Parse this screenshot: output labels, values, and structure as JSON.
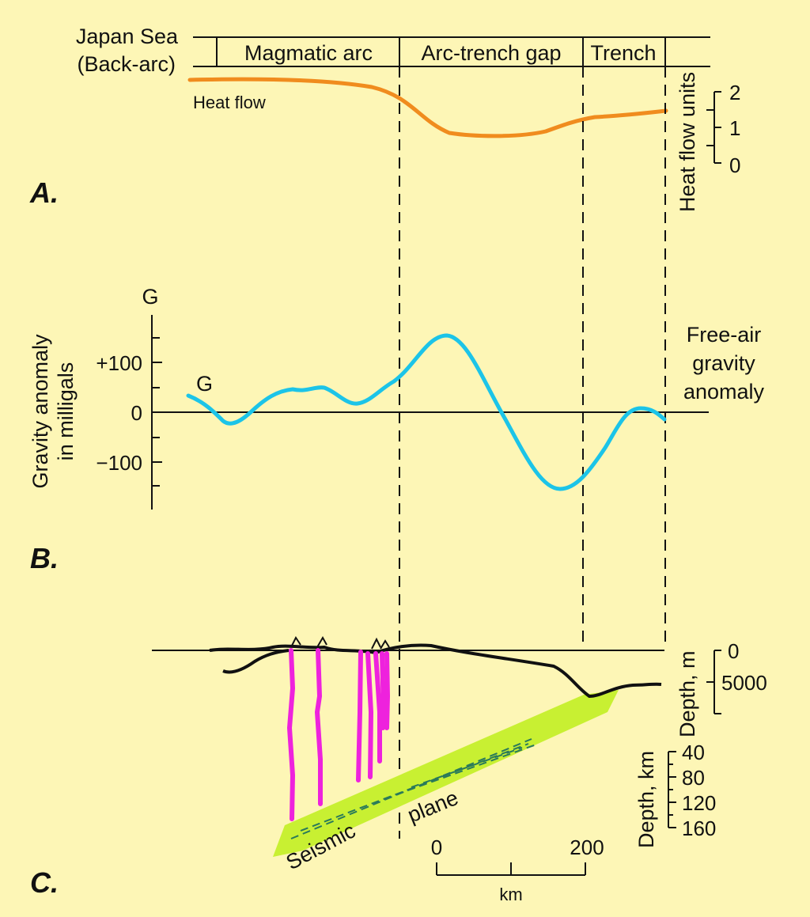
{
  "panel_a": {
    "letter": "A.",
    "back_arc_line1": "Japan Sea",
    "back_arc_line2": "(Back-arc)",
    "zones": [
      "Magmatic arc",
      "Arc-trench gap",
      "Trench"
    ],
    "curve_label": "Heat flow",
    "axis_title": "Heat flow units",
    "ticks": [
      "2",
      "1",
      "0"
    ],
    "curve_color": "#f08c1e"
  },
  "panel_b": {
    "letter": "B.",
    "axis_top": "G",
    "axis_title_line1": "Gravity anomaly",
    "axis_title_line2": "in milligals",
    "ticks": [
      "+100",
      "0",
      "−100"
    ],
    "curve_label": "G",
    "legend_line1": "Free-air",
    "legend_line2": "gravity",
    "legend_line3": "anomaly",
    "curve_color": "#1cc4e8"
  },
  "panel_c": {
    "letter": "C.",
    "depth_m_title": "Depth, m",
    "depth_m_ticks": [
      "0",
      "5000"
    ],
    "depth_km_title": "Depth, km",
    "depth_km_ticks": [
      "40",
      "80",
      "120",
      "160"
    ],
    "scale_ticks": [
      "0",
      "200"
    ],
    "scale_unit": "km",
    "seismic_word1": "Seismic",
    "seismic_word2": "plane",
    "slab_color": "#c8f032",
    "magma_color": "#ee22dd"
  }
}
